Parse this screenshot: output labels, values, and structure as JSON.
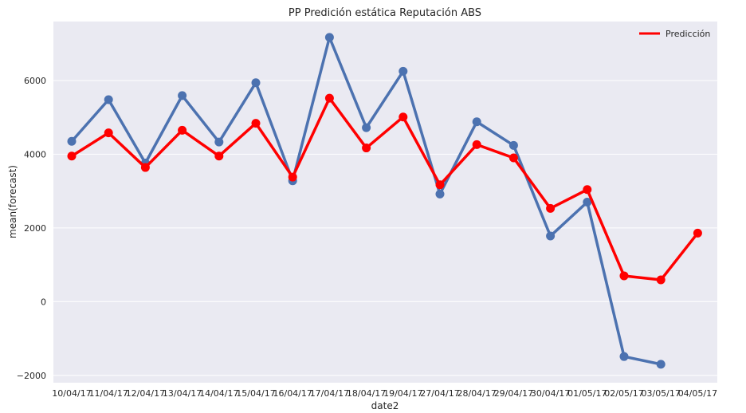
{
  "chart_data": {
    "type": "line",
    "title": "PP Predición estática Reputación ABS",
    "xlabel": "date2",
    "ylabel": "mean(forecast)",
    "categories": [
      "10/04/17",
      "11/04/17",
      "12/04/17",
      "13/04/17",
      "14/04/17",
      "15/04/17",
      "16/04/17",
      "17/04/17",
      "18/04/17",
      "19/04/17",
      "27/04/17",
      "28/04/17",
      "29/04/17",
      "30/04/17",
      "01/05/17",
      "02/05/17",
      "03/05/17",
      "04/05/17"
    ],
    "ylim": [
      -2200,
      7600
    ],
    "yticks": [
      -2000,
      0,
      2000,
      4000,
      6000
    ],
    "grid": true,
    "legend_position": "top-right",
    "series": [
      {
        "color": "#4c72b0",
        "values": [
          4350,
          5480,
          3760,
          5590,
          4330,
          5940,
          3280,
          7170,
          4720,
          6250,
          2920,
          4880,
          4240,
          1780,
          2700,
          -1490,
          -1700,
          null
        ]
      },
      {
        "name": "Predicción",
        "color": "#ff0000",
        "values": [
          3950,
          4580,
          3640,
          4650,
          3950,
          4840,
          3380,
          5520,
          4170,
          5010,
          3170,
          4260,
          3900,
          2530,
          3040,
          700,
          590,
          1860
        ]
      }
    ]
  }
}
